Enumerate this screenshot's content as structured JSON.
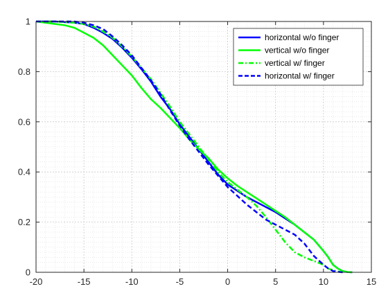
{
  "chart_data": {
    "type": "line",
    "title": "",
    "xlabel": "",
    "ylabel": "",
    "xlim": [
      -20,
      15
    ],
    "ylim": [
      0,
      1
    ],
    "x_ticks": [
      -20,
      -15,
      -10,
      -5,
      0,
      5,
      10,
      15
    ],
    "y_ticks": [
      0,
      0.2,
      0.4,
      0.6,
      0.8,
      1
    ],
    "x_tick_labels": [
      "-20",
      "-15",
      "-10",
      "-5",
      "0",
      "5",
      "10",
      "15"
    ],
    "y_tick_labels": [
      "0",
      "0.2",
      "0.4",
      "0.6",
      "0.8",
      "1"
    ],
    "grid": true,
    "minor_grid": true,
    "legend_position": "top-right",
    "series": [
      {
        "name": "horizontal w/o finger",
        "color": "#0000FF",
        "style": "solid",
        "x": [
          -20,
          -18,
          -16,
          -15,
          -14,
          -13,
          -12,
          -11,
          -10,
          -9,
          -8,
          -7,
          -6,
          -5,
          -4,
          -3,
          -2,
          -1,
          0,
          1,
          2,
          3,
          4,
          5,
          6,
          7,
          8,
          9,
          10,
          10.5,
          11,
          11.5,
          12,
          12.5,
          13
        ],
        "y": [
          1,
          1,
          0.995,
          0.99,
          0.975,
          0.955,
          0.93,
          0.895,
          0.855,
          0.81,
          0.76,
          0.7,
          0.65,
          0.59,
          0.54,
          0.49,
          0.44,
          0.39,
          0.35,
          0.325,
          0.3,
          0.28,
          0.26,
          0.24,
          0.215,
          0.19,
          0.16,
          0.13,
          0.085,
          0.06,
          0.03,
          0.015,
          0.005,
          0.001,
          0
        ]
      },
      {
        "name": "vertical w/o finger",
        "color": "#00FF00",
        "style": "solid",
        "x": [
          -20,
          -18,
          -17,
          -16,
          -15,
          -14,
          -13,
          -12,
          -11,
          -10,
          -9,
          -8,
          -7,
          -6,
          -5,
          -4,
          -3,
          -2,
          -1,
          0,
          1,
          2,
          3,
          4,
          5,
          6,
          7,
          8,
          9,
          10,
          10.5,
          11,
          11.5,
          12,
          12.5,
          13
        ],
        "y": [
          1,
          0.99,
          0.985,
          0.975,
          0.955,
          0.935,
          0.905,
          0.865,
          0.825,
          0.785,
          0.735,
          0.69,
          0.655,
          0.615,
          0.575,
          0.53,
          0.49,
          0.455,
          0.41,
          0.375,
          0.345,
          0.32,
          0.295,
          0.27,
          0.245,
          0.22,
          0.19,
          0.16,
          0.13,
          0.085,
          0.06,
          0.03,
          0.015,
          0.005,
          0.001,
          0
        ]
      },
      {
        "name": "vertical w/ finger",
        "color": "#00FF00",
        "style": "dashdot",
        "x": [
          -20,
          -18,
          -16,
          -15,
          -14,
          -13,
          -12,
          -11,
          -10,
          -9,
          -8,
          -7,
          -6,
          -5,
          -4,
          -3,
          -2,
          -1,
          0,
          1,
          2,
          3,
          4,
          5,
          6,
          7,
          8,
          9,
          10,
          10.5,
          11,
          11.5,
          12
        ],
        "y": [
          1,
          1,
          0.995,
          0.99,
          0.98,
          0.96,
          0.935,
          0.9,
          0.86,
          0.815,
          0.77,
          0.715,
          0.66,
          0.6,
          0.55,
          0.5,
          0.45,
          0.4,
          0.36,
          0.33,
          0.3,
          0.265,
          0.22,
          0.17,
          0.12,
          0.08,
          0.06,
          0.045,
          0.03,
          0.015,
          0.008,
          0.003,
          0
        ]
      },
      {
        "name": "horizontal w/ finger",
        "color": "#0000FF",
        "style": "dashed",
        "x": [
          -20,
          -18,
          -16,
          -15,
          -14,
          -13,
          -12,
          -11,
          -10,
          -9,
          -8,
          -7,
          -6,
          -5,
          -4,
          -3,
          -2,
          -1,
          0,
          1,
          2,
          3,
          4,
          5,
          6,
          7,
          8,
          9,
          10,
          10.5,
          11,
          11.5,
          12
        ],
        "y": [
          1,
          1,
          1,
          0.995,
          0.985,
          0.97,
          0.94,
          0.905,
          0.865,
          0.815,
          0.765,
          0.71,
          0.645,
          0.585,
          0.53,
          0.48,
          0.43,
          0.385,
          0.34,
          0.305,
          0.27,
          0.24,
          0.21,
          0.19,
          0.17,
          0.15,
          0.115,
          0.065,
          0.03,
          0.015,
          0.005,
          0.002,
          0
        ]
      }
    ]
  }
}
